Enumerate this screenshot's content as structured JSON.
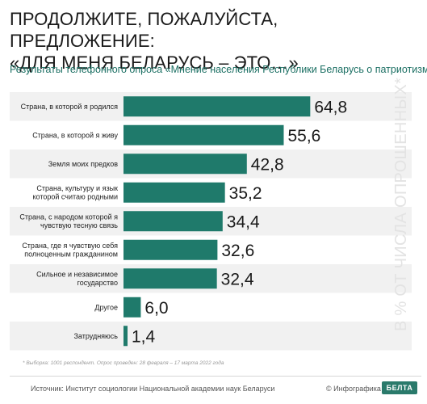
{
  "header": {
    "title_line1": "ПРОДОЛЖИТЕ, ПОЖАЛУЙСТА, ПРЕДЛОЖЕНИЕ:",
    "title_line2": "«ДЛЯ МЕНЯ БЕЛАРУСЬ – ЭТО…»",
    "subtitle": "Результаты телефонного опроса «Мнение населения Республики Беларусь о патриотизме»"
  },
  "side_label": "В % ОТ ЧИСЛА ОПРОШЕННЫХ*",
  "footnote": "* Выборка: 1001 респондент. Опрос проведен: 28 февраля – 17 марта 2022 года",
  "footer": {
    "source": "Источник: Институт социологии Национальной академии наук Беларуси",
    "copyright": "© Инфографика",
    "logo_text": "БЕЛТА"
  },
  "colors": {
    "bar": "#1f7a6b",
    "subtitle": "#1b6f63",
    "stripe": "#f1f1f1"
  },
  "chart_data": {
    "type": "bar",
    "orientation": "horizontal",
    "categories": [
      "Страна, в которой я родился",
      "Страна, в которой я живу",
      "Земля моих предков",
      "Страна, культуру и язык которой считаю родными",
      "Страна, с народом которой я чувствую тесную связь",
      "Страна, где я чувствую себя полноценным гражданином",
      "Сильное и независимое государство",
      "Другое",
      "Затрудняюсь"
    ],
    "category_lines": [
      [
        "Страна, в которой я родился"
      ],
      [
        "Страна, в которой я живу"
      ],
      [
        "Земля моих предков"
      ],
      [
        "Страна, культуру и язык",
        "которой  считаю родными"
      ],
      [
        "Страна, с народом которой я",
        "чувствую тесную связь"
      ],
      [
        "Страна, где я чувствую себя",
        "полноценным гражданином"
      ],
      [
        "Сильное и независимое",
        "государство"
      ],
      [
        "Другое"
      ],
      [
        "Затрудняюсь"
      ]
    ],
    "values": [
      64.8,
      55.6,
      42.8,
      35.2,
      34.4,
      32.6,
      32.4,
      6.0,
      1.4
    ],
    "value_labels": [
      "64,8",
      "55,6",
      "42,8",
      "35,2",
      "34,4",
      "32,6",
      "32,4",
      "6,0",
      "1,4"
    ],
    "xlim": [
      0,
      100
    ],
    "xticks": [
      0,
      20,
      40,
      60,
      80,
      100
    ],
    "xlabel": "",
    "ylabel": ""
  }
}
